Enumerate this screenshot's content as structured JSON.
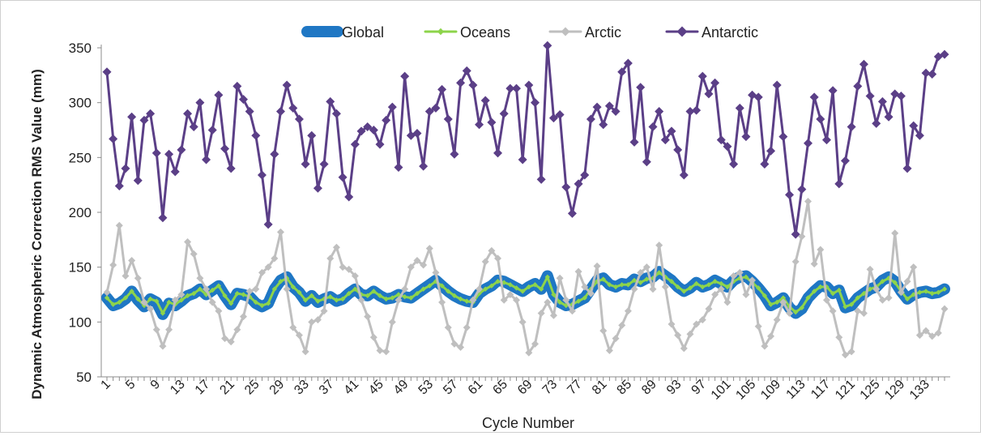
{
  "chart_data": {
    "type": "line",
    "title": "",
    "xlabel": "Cycle Number",
    "ylabel": "Dynamic Atmospheric Correction RMS Value (mm)",
    "ylim": [
      50,
      350
    ],
    "yticks": [
      50,
      100,
      150,
      200,
      250,
      300,
      350
    ],
    "xlim": [
      1,
      136
    ],
    "xtick_labels": [
      "1",
      "5",
      "9",
      "13",
      "17",
      "21",
      "25",
      "29",
      "33",
      "37",
      "41",
      "45",
      "49",
      "53",
      "57",
      "61",
      "65",
      "69",
      "73",
      "77",
      "81",
      "85",
      "89",
      "93",
      "97",
      "101",
      "105",
      "109",
      "113",
      "117",
      "121",
      "125",
      "129",
      "133"
    ],
    "grid": false,
    "legend_position": "top",
    "x": [
      1,
      2,
      3,
      4,
      5,
      6,
      7,
      8,
      9,
      10,
      11,
      12,
      13,
      14,
      15,
      16,
      17,
      18,
      19,
      20,
      21,
      22,
      23,
      24,
      25,
      26,
      27,
      28,
      29,
      30,
      31,
      32,
      33,
      34,
      35,
      36,
      37,
      38,
      39,
      40,
      41,
      42,
      43,
      44,
      45,
      46,
      47,
      48,
      49,
      50,
      51,
      52,
      53,
      54,
      55,
      56,
      57,
      58,
      59,
      60,
      61,
      62,
      63,
      64,
      65,
      66,
      67,
      68,
      69,
      70,
      71,
      72,
      73,
      74,
      75,
      76,
      77,
      78,
      79,
      80,
      81,
      82,
      83,
      84,
      85,
      86,
      87,
      88,
      89,
      90,
      91,
      92,
      93,
      94,
      95,
      96,
      97,
      98,
      99,
      100,
      101,
      102,
      103,
      104,
      105,
      106,
      107,
      108,
      109,
      110,
      111,
      112,
      113,
      114,
      115,
      116,
      117,
      118,
      119,
      120,
      121,
      122,
      123,
      124,
      125,
      126,
      127,
      128,
      129,
      130,
      131,
      132,
      133,
      134,
      135,
      136
    ],
    "series": [
      {
        "name": "Global",
        "color": "#1f77c4",
        "values": [
          122,
          115,
          117,
          121,
          128,
          120,
          114,
          121,
          118,
          107,
          117,
          115,
          119,
          124,
          126,
          130,
          125,
          129,
          133,
          124,
          116,
          126,
          125,
          123,
          117,
          114,
          117,
          130,
          138,
          141,
          132,
          127,
          119,
          124,
          118,
          121,
          123,
          119,
          121,
          126,
          130,
          125,
          124,
          128,
          124,
          121,
          122,
          125,
          123,
          122,
          126,
          130,
          134,
          138,
          133,
          128,
          124,
          121,
          119,
          118,
          126,
          130,
          133,
          138,
          137,
          134,
          131,
          128,
          132,
          135,
          130,
          142,
          125,
          118,
          115,
          116,
          119,
          122,
          130,
          138,
          140,
          134,
          132,
          135,
          134,
          139,
          137,
          140,
          141,
          146,
          142,
          138,
          132,
          128,
          131,
          136,
          132,
          134,
          138,
          135,
          132,
          138,
          141,
          142,
          137,
          131,
          124,
          115,
          118,
          122,
          113,
          108,
          112,
          122,
          128,
          133,
          132,
          126,
          129,
          113,
          115,
          122,
          126,
          130,
          132,
          138,
          141,
          137,
          128,
          121,
          125,
          127,
          128,
          126,
          127,
          130
        ]
      },
      {
        "name": "Oceans",
        "color": "#8dd44b",
        "values": [
          122,
          116,
          118,
          122,
          128,
          121,
          115,
          121,
          119,
          108,
          118,
          116,
          120,
          124,
          126,
          130,
          125,
          129,
          133,
          124,
          117,
          126,
          125,
          123,
          118,
          115,
          117,
          130,
          137,
          140,
          132,
          127,
          120,
          124,
          119,
          121,
          123,
          120,
          121,
          126,
          130,
          125,
          124,
          128,
          124,
          121,
          122,
          125,
          123,
          122,
          126,
          130,
          133,
          137,
          133,
          128,
          124,
          121,
          119,
          118,
          126,
          130,
          133,
          137,
          136,
          134,
          131,
          128,
          132,
          134,
          130,
          141,
          125,
          118,
          115,
          116,
          119,
          122,
          130,
          137,
          139,
          134,
          132,
          134,
          134,
          138,
          136,
          139,
          140,
          145,
          141,
          137,
          132,
          128,
          131,
          135,
          132,
          134,
          137,
          135,
          132,
          137,
          140,
          141,
          136,
          131,
          124,
          116,
          118,
          122,
          114,
          109,
          113,
          122,
          128,
          132,
          132,
          126,
          129,
          114,
          116,
          122,
          126,
          130,
          132,
          137,
          140,
          136,
          128,
          121,
          125,
          127,
          128,
          126,
          127,
          130
        ]
      },
      {
        "name": "Arctic",
        "color": "#bfbfbf",
        "values": [
          127,
          152,
          188,
          142,
          156,
          140,
          118,
          112,
          93,
          78,
          93,
          120,
          125,
          173,
          162,
          140,
          130,
          118,
          110,
          85,
          82,
          93,
          105,
          128,
          130,
          145,
          150,
          158,
          182,
          130,
          95,
          88,
          73,
          100,
          102,
          110,
          158,
          168,
          150,
          148,
          142,
          120,
          105,
          86,
          74,
          73,
          100,
          120,
          130,
          150,
          156,
          152,
          167,
          145,
          118,
          95,
          80,
          77,
          95,
          120,
          130,
          155,
          165,
          158,
          120,
          125,
          120,
          100,
          72,
          80,
          108,
          118,
          106,
          140,
          120,
          110,
          146,
          132,
          126,
          151,
          92,
          74,
          85,
          97,
          110,
          130,
          145,
          150,
          130,
          170,
          132,
          98,
          88,
          76,
          89,
          98,
          102,
          112,
          125,
          130,
          118,
          142,
          145,
          125,
          138,
          96,
          78,
          87,
          102,
          118,
          108,
          155,
          178,
          210,
          153,
          166,
          120,
          110,
          86,
          70,
          73,
          110,
          108,
          148,
          130,
          120,
          122,
          181,
          127,
          137,
          150,
          88,
          92,
          87,
          90,
          112
        ]
      },
      {
        "name": "Antarctic",
        "color": "#5b3f87",
        "values": [
          328,
          267,
          224,
          240,
          287,
          229,
          284,
          290,
          254,
          195,
          253,
          237,
          257,
          290,
          278,
          300,
          248,
          275,
          307,
          258,
          240,
          315,
          303,
          292,
          270,
          234,
          189,
          253,
          292,
          316,
          295,
          285,
          244,
          270,
          222,
          244,
          301,
          290,
          232,
          214,
          262,
          274,
          278,
          275,
          262,
          284,
          296,
          241,
          324,
          270,
          272,
          242,
          292,
          295,
          312,
          285,
          253,
          318,
          329,
          316,
          280,
          302,
          282,
          254,
          290,
          313,
          313,
          248,
          316,
          300,
          230,
          352,
          286,
          289,
          223,
          199,
          226,
          234,
          285,
          296,
          280,
          297,
          292,
          328,
          336,
          264,
          314,
          246,
          278,
          292,
          266,
          274,
          257,
          234,
          292,
          293,
          324,
          308,
          318,
          266,
          260,
          244,
          295,
          269,
          307,
          305,
          244,
          256,
          316,
          269,
          216,
          180,
          221,
          263,
          305,
          285,
          266,
          311,
          226,
          247,
          278,
          315,
          335,
          306,
          281,
          301,
          287,
          308,
          306,
          240,
          279,
          270,
          327,
          326,
          342,
          344
        ]
      }
    ]
  }
}
